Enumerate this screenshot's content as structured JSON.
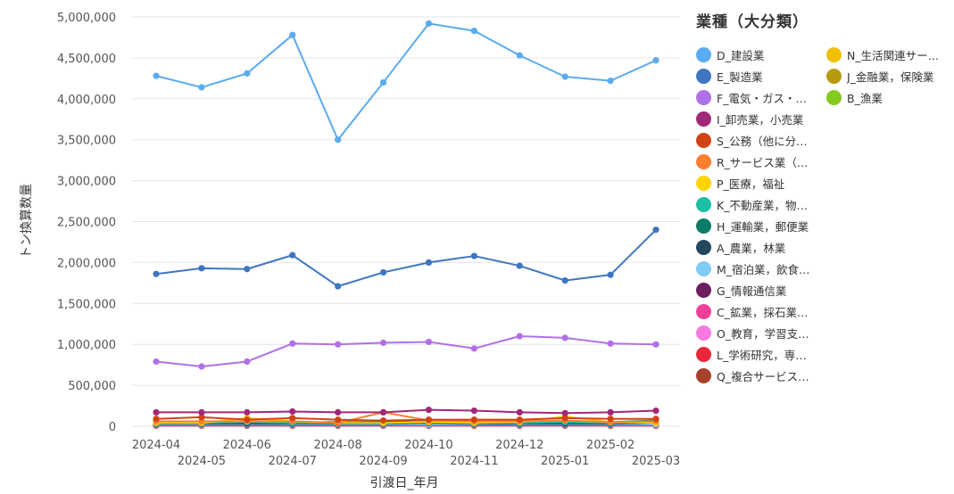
{
  "chart_data": {
    "type": "line",
    "title": "",
    "xlabel": "引渡日_年月",
    "ylabel": "トン換算数量",
    "ylim": [
      0,
      5000000
    ],
    "yticks": [
      "5,000,000",
      "4,500,000",
      "4,000,000",
      "3,500,000",
      "3,000,000",
      "2,500,000",
      "2,000,000",
      "1,500,000",
      "1,000,000",
      "500,000",
      "0"
    ],
    "ytick_values": [
      5000000,
      4500000,
      4000000,
      3500000,
      3000000,
      2500000,
      2000000,
      1500000,
      1000000,
      500000,
      0
    ],
    "categories": [
      "2024-04",
      "2024-05",
      "2024-06",
      "2024-07",
      "2024-08",
      "2024-09",
      "2024-10",
      "2024-11",
      "2024-12",
      "2025-01",
      "2025-02",
      "2025-03"
    ],
    "grid": true,
    "legend_position": "right",
    "legend_title": "業種（大分類）",
    "series": [
      {
        "name": "D_建設業",
        "label": "D_建設業",
        "color": "#5aabf0",
        "values": [
          4280000,
          4140000,
          4310000,
          4780000,
          3500000,
          4200000,
          4920000,
          4830000,
          4530000,
          4270000,
          4220000,
          4470000
        ]
      },
      {
        "name": "E_製造業",
        "label": "E_製造業",
        "color": "#3f75c0",
        "values": [
          1860000,
          1930000,
          1920000,
          2090000,
          1710000,
          1880000,
          2000000,
          2080000,
          1960000,
          1780000,
          1850000,
          2400000
        ]
      },
      {
        "name": "F_電気・ガス・熱供給・水道業",
        "label": "F_電気・ガス・…",
        "color": "#b070e8",
        "values": [
          790000,
          730000,
          790000,
          1010000,
          1000000,
          1020000,
          1030000,
          950000,
          1100000,
          1080000,
          1010000,
          1000000
        ]
      },
      {
        "name": "I_卸売業，小売業",
        "label": "I_卸売業，小売業",
        "color": "#a02878",
        "values": [
          170000,
          170000,
          170000,
          180000,
          170000,
          170000,
          200000,
          190000,
          170000,
          160000,
          170000,
          190000
        ]
      },
      {
        "name": "S_公務（他に分類されるものを除く）",
        "label": "S_公務（他に分…",
        "color": "#d04414",
        "values": [
          90000,
          110000,
          80000,
          100000,
          80000,
          70000,
          80000,
          80000,
          80000,
          100000,
          90000,
          90000
        ]
      },
      {
        "name": "R_サービス業（他に分類されないもの）",
        "label": "R_サービス業（…",
        "color": "#ff7f2e",
        "values": [
          60000,
          60000,
          60000,
          60000,
          40000,
          170000,
          70000,
          60000,
          60000,
          70000,
          50000,
          60000
        ]
      },
      {
        "name": "P_医療，福祉",
        "label": "P_医療，福祉",
        "color": "#ffd400",
        "values": [
          40000,
          40000,
          100000,
          60000,
          40000,
          40000,
          50000,
          40000,
          50000,
          120000,
          50000,
          40000
        ]
      },
      {
        "name": "K_不動産業，物品賃貸業",
        "label": "K_不動産業，物…",
        "color": "#1bbfa5",
        "values": [
          50000,
          40000,
          50000,
          40000,
          40000,
          40000,
          60000,
          50000,
          40000,
          50000,
          40000,
          60000
        ]
      },
      {
        "name": "H_運輸業，郵便業",
        "label": "H_運輸業，郵便業",
        "color": "#0b7d69",
        "values": [
          60000,
          50000,
          50000,
          50000,
          50000,
          50000,
          60000,
          60000,
          50000,
          50000,
          50000,
          70000
        ]
      },
      {
        "name": "A_農業，林業",
        "label": "A_農業，林業",
        "color": "#22475f",
        "values": [
          30000,
          30000,
          30000,
          30000,
          30000,
          30000,
          40000,
          30000,
          30000,
          30000,
          30000,
          40000
        ]
      },
      {
        "name": "M_宿泊業，飲食サービス業",
        "label": "M_宿泊業，飲食…",
        "color": "#7fcaf6",
        "values": [
          20000,
          20000,
          20000,
          20000,
          20000,
          20000,
          20000,
          20000,
          20000,
          20000,
          20000,
          20000
        ]
      },
      {
        "name": "G_情報通信業",
        "label": "G_情報通信業",
        "color": "#6b1d5e",
        "values": [
          15000,
          15000,
          15000,
          15000,
          15000,
          15000,
          15000,
          15000,
          15000,
          15000,
          15000,
          15000
        ]
      },
      {
        "name": "C_鉱業，採石業，砂利採取業",
        "label": "C_鉱業，採石業…",
        "color": "#f0409a",
        "values": [
          12000,
          12000,
          12000,
          12000,
          12000,
          12000,
          12000,
          12000,
          12000,
          12000,
          12000,
          12000
        ]
      },
      {
        "name": "O_教育，学習支援業",
        "label": "O_教育，学習支…",
        "color": "#f77ae0",
        "values": [
          10000,
          10000,
          10000,
          10000,
          10000,
          10000,
          10000,
          10000,
          10000,
          10000,
          10000,
          10000
        ]
      },
      {
        "name": "L_学術研究，専門・技術サービス業",
        "label": "L_学術研究，専…",
        "color": "#e8283a",
        "values": [
          9000,
          9000,
          9000,
          9000,
          9000,
          9000,
          9000,
          9000,
          9000,
          9000,
          9000,
          9000
        ]
      },
      {
        "name": "Q_複合サービス事業",
        "label": "Q_複合サービス…",
        "color": "#a8402a",
        "values": [
          8000,
          8000,
          8000,
          8000,
          8000,
          8000,
          8000,
          8000,
          8000,
          8000,
          8000,
          8000
        ]
      },
      {
        "name": "N_生活関連サービス業，娯楽業",
        "label": "N_生活関連サー…",
        "color": "#f0c000",
        "values": [
          7000,
          7000,
          7000,
          7000,
          7000,
          7000,
          7000,
          7000,
          7000,
          7000,
          7000,
          7000
        ]
      },
      {
        "name": "J_金融業，保険業",
        "label": "J_金融業，保険業",
        "color": "#b89a10",
        "values": [
          5000,
          5000,
          5000,
          5000,
          5000,
          5000,
          5000,
          5000,
          5000,
          5000,
          5000,
          5000
        ]
      },
      {
        "name": "B_漁業",
        "label": "B_漁業",
        "color": "#84c91e",
        "values": [
          20000,
          20000,
          20000,
          20000,
          20000,
          20000,
          20000,
          20000,
          20000,
          20000,
          20000,
          20000
        ]
      }
    ]
  }
}
